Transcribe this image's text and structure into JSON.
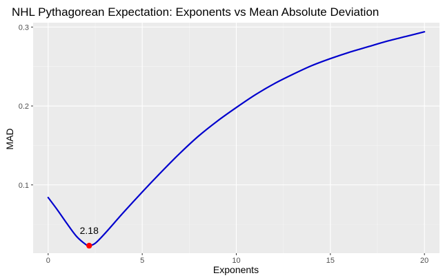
{
  "chart_data": {
    "type": "line",
    "title": "NHL Pythagorean Expectation: Exponents vs Mean Absolute Deviation",
    "xlabel": "Exponents",
    "ylabel": "MAD",
    "xlim": [
      -0.8,
      20.8
    ],
    "ylim": [
      0.0135,
      0.3055
    ],
    "x_ticks": [
      0,
      5,
      10,
      15,
      20
    ],
    "x_tick_labels": [
      "0",
      "5",
      "10",
      "15",
      "20"
    ],
    "y_ticks": [
      0.1,
      0.2,
      0.3
    ],
    "y_tick_labels": [
      "0.1",
      "0.2",
      "0.3"
    ],
    "grid": true,
    "background": "#ebebeb",
    "series": [
      {
        "color": "#0000cd",
        "x": [
          0,
          0.5,
          1,
          1.5,
          2,
          2.18,
          2.5,
          3,
          4,
          5,
          6,
          7,
          8,
          9,
          10,
          11,
          12,
          13,
          14,
          15,
          16,
          17,
          18,
          19,
          20
        ],
        "y": [
          0.084,
          0.068,
          0.051,
          0.035,
          0.0245,
          0.023,
          0.026,
          0.038,
          0.065,
          0.091,
          0.116,
          0.14,
          0.162,
          0.181,
          0.198,
          0.214,
          0.228,
          0.24,
          0.251,
          0.26,
          0.268,
          0.275,
          0.282,
          0.288,
          0.294
        ]
      }
    ],
    "highlight": {
      "x": 2.18,
      "y": 0.023,
      "label": "2.18",
      "color": "#ff0000"
    }
  }
}
